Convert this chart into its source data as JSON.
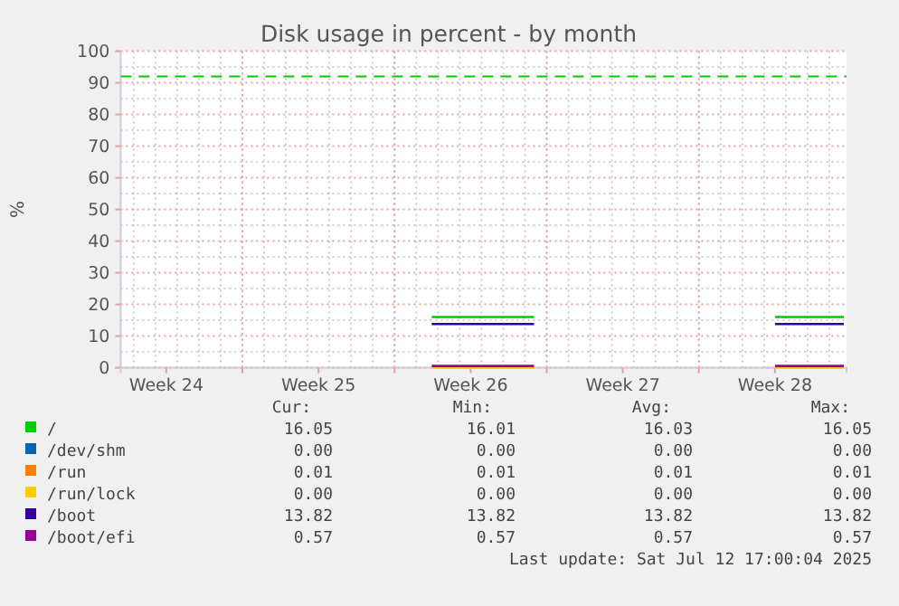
{
  "chart_data": {
    "type": "line",
    "title": "Disk usage in percent - by month",
    "ylabel": "%",
    "x": [
      "2025-06-24T17:00",
      "2025-06-29T10:00",
      "2025-07-05T00:00",
      "2025-07-10T12:00",
      "2025-07-13T16:00"
    ],
    "series": [
      {
        "name": "/",
        "color": "#00cc00",
        "values": [
          16.05,
          16.05,
          null,
          16.05,
          16.05
        ]
      },
      {
        "name": "/dev/shm",
        "color": "#0066b3",
        "values": [
          null,
          null,
          null,
          null,
          null
        ]
      },
      {
        "name": "/run",
        "color": "#ff8000",
        "values": [
          null,
          null,
          null,
          null,
          null
        ]
      },
      {
        "name": "/run/lock",
        "color": "#ffcc00",
        "values": [
          0,
          0,
          null,
          0,
          0
        ]
      },
      {
        "name": "/boot",
        "color": "#330099",
        "values": [
          13.82,
          13.82,
          null,
          13.82,
          13.82
        ]
      },
      {
        "name": "/boot/efi",
        "color": "#990099",
        "values": [
          0.57,
          0.57,
          null,
          0.57,
          0.57
        ]
      }
    ],
    "xlim": [
      "2025-06-10T09:36",
      "2025-07-13T19:00"
    ],
    "xticks": [
      {
        "value": "2025-06-12T12:00",
        "label": "Week 24"
      },
      {
        "value": "2025-06-16T00:00",
        "label": null
      },
      {
        "value": "2025-06-19T12:00",
        "label": "Week 25"
      },
      {
        "value": "2025-06-23T00:00",
        "label": null
      },
      {
        "value": "2025-06-26T12:00",
        "label": "Week 26"
      },
      {
        "value": "2025-06-30T00:00",
        "label": null
      },
      {
        "value": "2025-07-03T12:00",
        "label": "Week 27"
      },
      {
        "value": "2025-07-07T00:00",
        "label": null
      },
      {
        "value": "2025-07-10T12:00",
        "label": "Week 28"
      }
    ],
    "ylim": [
      0,
      100
    ],
    "yticks": [
      0,
      10,
      20,
      30,
      40,
      50,
      60,
      70,
      80,
      90,
      100
    ],
    "grid": true,
    "legend": "bottom",
    "line_style": "solid",
    "marker": "none",
    "ref_lines": [
      {
        "axis": "y",
        "value": 92,
        "color": "#00cc00",
        "line_style": "dashed"
      }
    ],
    "annotations": [
      "Cur:",
      "Min:",
      "Avg:",
      "Max:",
      "16.05",
      "16.01",
      "16.03",
      "16.05",
      "0.00",
      "0.00",
      "0.00",
      "0.00",
      "0.01",
      "0.01",
      "0.01",
      "0.01",
      "0.00",
      "0.00",
      "0.00",
      "0.00",
      "13.82",
      "13.82",
      "13.82",
      "13.82",
      "0.57",
      "0.57",
      "0.57",
      "0.57",
      "Last update: Sat Jul 12 17:00:04 2025"
    ]
  }
}
